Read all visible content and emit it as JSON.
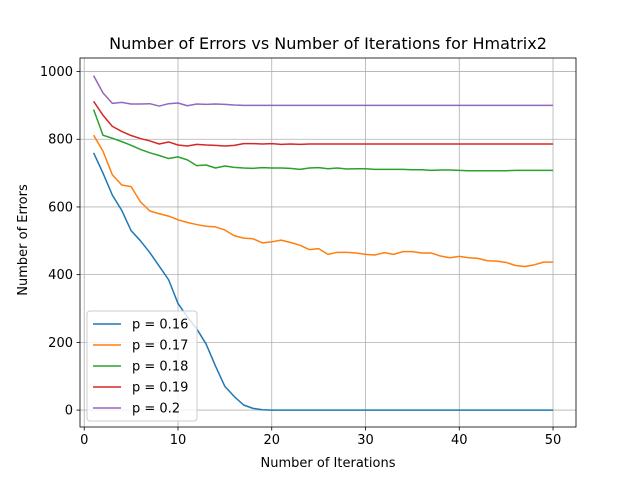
{
  "chart_data": {
    "type": "line",
    "title": "Number of Errors vs Number of Iterations for Hmatrix2",
    "xlabel": "Number of Iterations",
    "ylabel": "Number of Errors",
    "xlim": [
      -0.45,
      52.45
    ],
    "ylim": [
      -50,
      1040
    ],
    "xticks": [
      0,
      10,
      20,
      30,
      40,
      50
    ],
    "yticks": [
      0,
      200,
      400,
      600,
      800,
      1000
    ],
    "grid": true,
    "legend_position": "lower-left",
    "x": [
      1,
      2,
      3,
      4,
      5,
      6,
      7,
      8,
      9,
      10,
      11,
      12,
      13,
      14,
      15,
      16,
      17,
      18,
      19,
      20,
      21,
      22,
      23,
      24,
      25,
      26,
      27,
      28,
      29,
      30,
      31,
      32,
      33,
      34,
      35,
      36,
      37,
      38,
      39,
      40,
      41,
      42,
      43,
      44,
      45,
      46,
      47,
      48,
      49,
      50
    ],
    "series": [
      {
        "name": "p = 0.16",
        "color": "#1f77b4",
        "values": [
          760,
          700,
          635,
          590,
          530,
          500,
          465,
          425,
          385,
          315,
          275,
          240,
          195,
          130,
          70,
          40,
          15,
          5,
          1,
          0,
          0,
          0,
          0,
          0,
          0,
          0,
          0,
          0,
          0,
          0,
          0,
          0,
          0,
          0,
          0,
          0,
          0,
          0,
          0,
          0,
          0,
          0,
          0,
          0,
          0,
          0,
          0,
          0,
          0,
          0
        ]
      },
      {
        "name": "p = 0.17",
        "color": "#ff7f0e",
        "values": [
          812,
          765,
          695,
          665,
          660,
          615,
          588,
          580,
          573,
          562,
          554,
          548,
          543,
          541,
          532,
          515,
          508,
          506,
          494,
          497,
          502,
          495,
          487,
          474,
          477,
          460,
          466,
          466,
          464,
          460,
          458,
          465,
          460,
          468,
          468,
          464,
          464,
          455,
          450,
          454,
          450,
          448,
          441,
          440,
          436,
          427,
          424,
          429,
          437,
          437
        ]
      },
      {
        "name": "p = 0.18",
        "color": "#2ca02c",
        "values": [
          888,
          812,
          803,
          793,
          782,
          770,
          760,
          752,
          743,
          748,
          739,
          722,
          724,
          715,
          721,
          717,
          715,
          714,
          716,
          715,
          715,
          714,
          711,
          715,
          716,
          713,
          715,
          712,
          713,
          713,
          711,
          711,
          711,
          711,
          710,
          710,
          708,
          709,
          709,
          708,
          707,
          707,
          707,
          707,
          707,
          708,
          708,
          708,
          708,
          708
        ]
      },
      {
        "name": "p = 0.19",
        "color": "#d62728",
        "values": [
          912,
          871,
          838,
          823,
          811,
          802,
          795,
          786,
          792,
          783,
          780,
          785,
          783,
          782,
          780,
          782,
          787,
          787,
          786,
          787,
          785,
          786,
          785,
          786,
          786,
          786,
          786,
          786,
          786,
          786,
          786,
          786,
          786,
          786,
          786,
          786,
          786,
          786,
          786,
          786,
          786,
          786,
          786,
          786,
          786,
          786,
          786,
          786,
          786,
          786
        ]
      },
      {
        "name": "p = 0.2",
        "color": "#9467bd",
        "values": [
          988,
          937,
          906,
          909,
          904,
          904,
          905,
          898,
          905,
          907,
          899,
          904,
          903,
          904,
          903,
          901,
          900,
          900,
          900,
          900,
          900,
          900,
          900,
          900,
          900,
          900,
          900,
          900,
          900,
          900,
          900,
          900,
          900,
          900,
          900,
          900,
          900,
          900,
          900,
          900,
          900,
          900,
          900,
          900,
          900,
          900,
          900,
          900,
          900,
          900
        ]
      }
    ]
  }
}
